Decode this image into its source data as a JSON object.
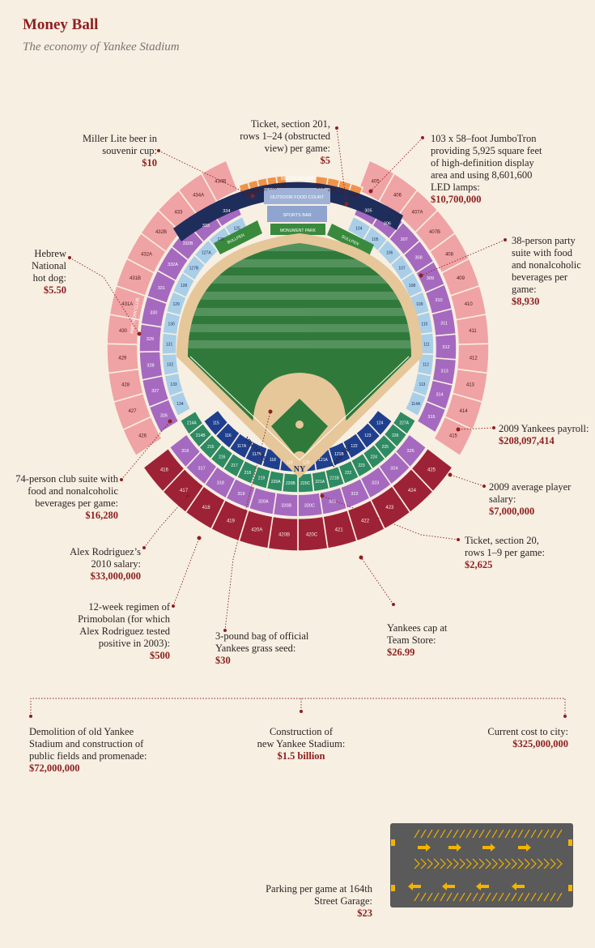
{
  "title": "Money Ball",
  "subtitle": "The economy of Yankee Stadium",
  "annotations": {
    "miller": {
      "text": "Miller Lite beer in\nsouvenir cup:",
      "value": "$10"
    },
    "ticket201": {
      "text": "Ticket, section 201,\nrows 1–24 (obstructed\nview) per game:",
      "value": "$5"
    },
    "jumbotron": {
      "text": "103 x 58–foot JumboTron\nproviding 5,925 square feet\nof high-definition display\narea and using 8,601,600\nLED lamps:",
      "value": "$10,700,000"
    },
    "hotdog": {
      "text": "Hebrew\nNational\nhot dog:",
      "value": "$5.50"
    },
    "partysuite": {
      "text": "38-person party\nsuite with food\nand nonalcoholic\nbeverages per\ngame:",
      "value": "$8,930"
    },
    "payroll": {
      "text": "2009 Yankees payroll:",
      "value": "$208,097,414"
    },
    "clubsuite": {
      "text": "74-person club suite with\nfood and nonalcoholic\nbeverages per game:",
      "value": "$16,280"
    },
    "avgsalary": {
      "text": "2009 average player\nsalary:",
      "value": "$7,000,000"
    },
    "arod": {
      "text": "Alex Rodriguez’s\n2010 salary:",
      "value": "$33,000,000"
    },
    "ticket20": {
      "text": "Ticket, section 20,\nrows 1–9 per game:",
      "value": "$2,625"
    },
    "primobolan": {
      "text": "12-week regimen of\nPrimobolan (for which\nAlex Rodriguez tested\npositive in 2003):",
      "value": "$500"
    },
    "grassseed": {
      "text": "3-pound bag of official\nYankees grass seed:",
      "value": "$30"
    },
    "cap": {
      "text": "Yankees cap at\nTeam Store:",
      "value": "$26.99"
    },
    "demolition": {
      "text": "Demolition of old Yankee\nStadium and construction of\npublic fields and promenade:",
      "value": "$72,000,000"
    },
    "construction": {
      "text": "Construction of\nnew Yankee Stadium:",
      "value": "$1.5 billion"
    },
    "citycost": {
      "text": "Current cost to city:",
      "value": "$325,000,000"
    },
    "parking": {
      "text": "Parking per game at 164th\nStreet Garage:",
      "value": "$23"
    }
  },
  "stadium_labels": {
    "scoreboard": "SCOREBOARD",
    "food_court": "OUTDOOR FOOD COURT",
    "sports_bar": "SPORTS BAR",
    "monument_park": "MONUMENT PARK",
    "bullpen": "BULLPEN",
    "visitors": "VISITORS",
    "yankees": "YANKEES",
    "legends": "LEGENDS",
    "club": "AMERICAN CLUB",
    "logo": "NY"
  },
  "sections": {
    "bleacher_left": [
      "239",
      "238",
      "237",
      "236",
      "235"
    ],
    "bleacher_right": [
      "201",
      "202",
      "203",
      "204"
    ],
    "upper_left": [
      "426",
      "427",
      "428",
      "429",
      "430",
      "431A",
      "431B",
      "432A",
      "432B",
      "433",
      "434A",
      "434B"
    ],
    "upper_right": [
      "405",
      "406",
      "407A",
      "407B",
      "408",
      "409",
      "410",
      "411",
      "412",
      "413",
      "414",
      "415"
    ],
    "upper_home": [
      "425",
      "424",
      "423",
      "422",
      "421",
      "420C",
      "420B",
      "420A",
      "419",
      "418",
      "417",
      "416"
    ],
    "terrace_home": [
      "325",
      "324",
      "323",
      "322",
      "321",
      "320C",
      "320B",
      "320A",
      "319",
      "318",
      "317",
      "316"
    ],
    "main_left": [
      "134",
      "133",
      "132",
      "131",
      "130",
      "129",
      "128",
      "127B",
      "127A",
      "126",
      "125"
    ],
    "main_right": [
      "104",
      "105",
      "106",
      "107",
      "108",
      "109",
      "110",
      "111",
      "112",
      "113",
      "114A"
    ],
    "main_home": [
      "124",
      "123",
      "122",
      "121B",
      "121A",
      "120",
      "119",
      "118",
      "117B",
      "117A",
      "116",
      "115"
    ]
  },
  "colors": {
    "background": "#f7efe2",
    "accent": "#8e1f1f",
    "field": "#2f7a3a",
    "infield": "#e6c79a",
    "upper_deck": "#f0a3a4",
    "bleachers": "#f0934a",
    "navy": "#1f2d5a",
    "main_level": "#a9cfe8",
    "terrace": "#a56abf",
    "home_upper": "#9e2236",
    "field_box": "#1f3f8e",
    "lower_box": "#2e8a62"
  }
}
